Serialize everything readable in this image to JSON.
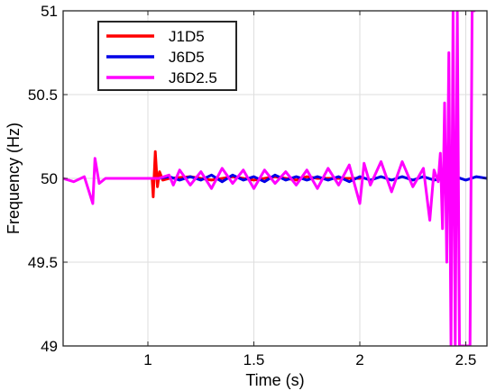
{
  "chart_data": {
    "type": "line",
    "title": "",
    "xlabel": "Time (s)",
    "ylabel": "Frequency (Hz)",
    "xlim": [
      0.6,
      2.6
    ],
    "ylim": [
      49,
      51
    ],
    "xticks": [
      1,
      1.5,
      2,
      2.5
    ],
    "xtick_labels": [
      "1",
      "1.5",
      "2",
      "2.5"
    ],
    "yticks": [
      49,
      49.5,
      50,
      50.5,
      51
    ],
    "ytick_labels": [
      "49",
      "49.5",
      "50",
      "50.5",
      "51"
    ],
    "grid": true,
    "legend_position": "top-left",
    "series": [
      {
        "name": "J1D5",
        "color": "#ff0000",
        "x": [
          1.0,
          1.02,
          1.025,
          1.035,
          1.045,
          1.055,
          1.07,
          1.1,
          1.2,
          1.3,
          1.4,
          1.5,
          1.6,
          1.7,
          1.75,
          1.8,
          1.9,
          2.0
        ],
        "y": [
          50.0,
          50.0,
          49.89,
          50.16,
          49.95,
          50.04,
          49.99,
          50.0,
          50.01,
          49.99,
          50.01,
          49.99,
          50.01,
          49.99,
          50.01,
          50.0,
          50.0,
          50.0
        ]
      },
      {
        "name": "J6D5",
        "color": "#0000e6",
        "x": [
          1.05,
          1.1,
          1.15,
          1.2,
          1.25,
          1.3,
          1.35,
          1.4,
          1.45,
          1.5,
          1.55,
          1.6,
          1.65,
          1.7,
          1.75,
          1.8,
          1.85,
          1.9,
          1.95,
          2.0,
          2.05,
          2.1,
          2.15,
          2.2,
          2.25,
          2.3,
          2.35,
          2.4,
          2.45,
          2.5,
          2.55,
          2.6
        ],
        "y": [
          50.0,
          50.01,
          49.99,
          50.01,
          49.99,
          50.02,
          49.98,
          50.02,
          49.99,
          50.01,
          49.98,
          50.02,
          49.99,
          50.01,
          49.99,
          50.01,
          49.99,
          50.01,
          49.98,
          50.01,
          49.99,
          50.01,
          49.99,
          50.01,
          49.99,
          50.01,
          49.99,
          50.0,
          50.01,
          49.99,
          50.01,
          50.0
        ]
      },
      {
        "name": "J6D2.5",
        "color": "#ff00ff",
        "x": [
          0.6,
          0.65,
          0.7,
          0.74,
          0.75,
          0.77,
          0.8,
          0.85,
          0.9,
          0.95,
          1.0,
          1.05,
          1.1,
          1.12,
          1.15,
          1.2,
          1.25,
          1.3,
          1.35,
          1.4,
          1.45,
          1.5,
          1.55,
          1.6,
          1.65,
          1.7,
          1.75,
          1.8,
          1.85,
          1.9,
          1.95,
          2.0,
          2.02,
          2.05,
          2.1,
          2.15,
          2.2,
          2.25,
          2.3,
          2.33,
          2.35,
          2.37,
          2.38,
          2.39,
          2.4,
          2.41,
          2.42,
          2.43,
          2.44,
          2.45,
          2.46,
          2.47,
          2.52,
          2.53,
          2.54
        ],
        "y": [
          50.0,
          49.98,
          50.01,
          49.85,
          50.12,
          49.97,
          50.0,
          50.0,
          50.0,
          50.0,
          50.0,
          50.0,
          50.02,
          49.96,
          50.05,
          49.96,
          50.04,
          49.94,
          50.06,
          49.97,
          50.05,
          49.94,
          50.05,
          49.97,
          50.04,
          49.96,
          50.05,
          49.94,
          50.06,
          49.96,
          50.08,
          49.85,
          50.09,
          49.96,
          50.1,
          49.92,
          50.1,
          49.95,
          50.06,
          49.75,
          50.05,
          49.98,
          50.15,
          49.7,
          50.45,
          49.5,
          50.75,
          49.0,
          51.0,
          49.0,
          51.0,
          49.0,
          49.0,
          51.0,
          51.0
        ]
      }
    ]
  }
}
